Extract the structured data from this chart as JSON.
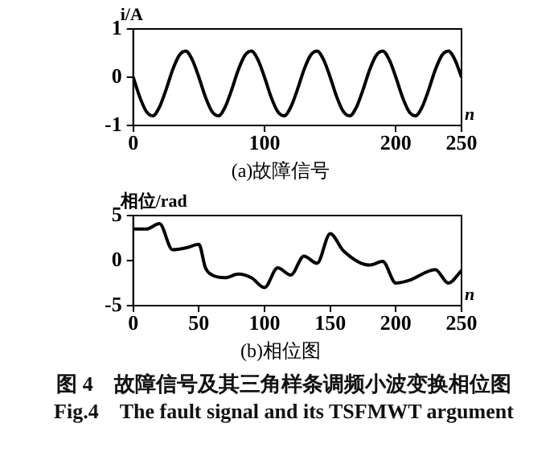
{
  "chart_data": [
    {
      "type": "line",
      "title": "(a)故障信号",
      "xlabel": "n",
      "ylabel": "i/A",
      "x": [
        0,
        5,
        10,
        15,
        20,
        25,
        30,
        35,
        40,
        45,
        50,
        55,
        60,
        65,
        70,
        75,
        80,
        85,
        90,
        95,
        100,
        105,
        110,
        115,
        120,
        125,
        130,
        135,
        140,
        145,
        150,
        155,
        160,
        165,
        170,
        175,
        180,
        185,
        190,
        195,
        200,
        205,
        210,
        215,
        220,
        225,
        230,
        235,
        240,
        245,
        250
      ],
      "series": [
        {
          "color": "#000000",
          "values": [
            0,
            -0.41,
            -0.71,
            -0.8,
            -0.62,
            -0.26,
            0.15,
            0.45,
            0.54,
            0.36,
            0,
            -0.41,
            -0.71,
            -0.8,
            -0.62,
            -0.26,
            0.15,
            0.45,
            0.54,
            0.36,
            0,
            -0.41,
            -0.71,
            -0.8,
            -0.62,
            -0.26,
            0.15,
            0.45,
            0.54,
            0.36,
            0,
            -0.41,
            -0.71,
            -0.8,
            -0.62,
            -0.26,
            0.15,
            0.45,
            0.54,
            0.36,
            0,
            -0.41,
            -0.71,
            -0.8,
            -0.62,
            -0.26,
            0.15,
            0.45,
            0.54,
            0.36,
            0
          ]
        }
      ],
      "xlim": [
        0,
        250
      ],
      "xticks": [
        0,
        100,
        200,
        250
      ],
      "ylim": [
        -1,
        1
      ],
      "yticks": [
        -1,
        0,
        1
      ],
      "grid": false,
      "legend": false,
      "marker": "none",
      "line_style": "solid"
    },
    {
      "type": "line",
      "title": "(b)相位图",
      "xlabel": "n",
      "ylabel": "相位/rad",
      "x": [
        0,
        10,
        20,
        30,
        40,
        50,
        55,
        60,
        70,
        80,
        90,
        100,
        110,
        120,
        130,
        140,
        150,
        160,
        180,
        190,
        200,
        210,
        230,
        240,
        250
      ],
      "series": [
        {
          "color": "#000000",
          "values": [
            3.5,
            3.5,
            4.1,
            1.2,
            1.4,
            1.8,
            -0.8,
            -1.6,
            -1.9,
            -1.5,
            -1.9,
            -3.0,
            -0.8,
            -1.6,
            0.5,
            -0.3,
            3.0,
            1.1,
            -0.5,
            -0.1,
            -2.5,
            -2.2,
            -1.0,
            -2.5,
            -1.1
          ]
        }
      ],
      "xlim": [
        0,
        250
      ],
      "xticks": [
        0,
        50,
        100,
        150,
        200,
        250
      ],
      "ylim": [
        -5,
        5
      ],
      "yticks": [
        -5,
        0,
        5
      ],
      "grid": false,
      "legend": false,
      "marker": "none",
      "line_style": "solid",
      "annotations": [
        "图 4　故障信号及其三角样条调频小波变换相位图",
        "Fig.4　The fault signal and its TSFMWT argument"
      ]
    }
  ]
}
